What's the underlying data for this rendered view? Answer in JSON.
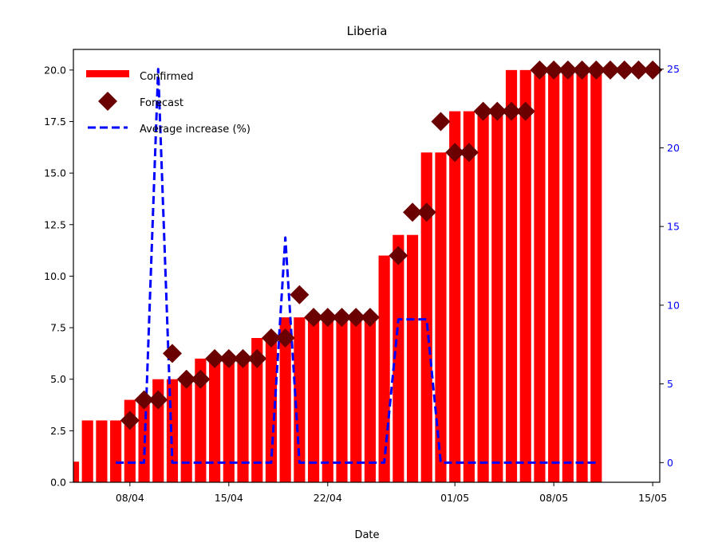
{
  "chart_data": {
    "type": "bar",
    "title": "Liberia",
    "xlabel": "Date",
    "ylabel": "",
    "ylabel_right": "",
    "x_start": "2020-04-04",
    "x_end": "2020-05-15",
    "x_ticks": [
      {
        "date": "2020-04-08",
        "label": "08/04"
      },
      {
        "date": "2020-04-15",
        "label": "15/04"
      },
      {
        "date": "2020-04-22",
        "label": "22/04"
      },
      {
        "date": "2020-05-01",
        "label": "01/05"
      },
      {
        "date": "2020-05-08",
        "label": "08/05"
      },
      {
        "date": "2020-05-15",
        "label": "15/05"
      }
    ],
    "ylim": [
      0,
      21
    ],
    "y_ticks": [
      "0.0",
      "2.5",
      "5.0",
      "7.5",
      "10.0",
      "12.5",
      "15.0",
      "17.5",
      "20.0"
    ],
    "ylim_right": [
      -1.25,
      26.25
    ],
    "y_ticks_right": [
      "0",
      "5",
      "10",
      "15",
      "20",
      "25"
    ],
    "legend": {
      "position": "top-left",
      "entries": [
        "Confirmed",
        "Forecast",
        "Average increase (%)"
      ]
    },
    "colors": {
      "confirmed": "#ff0000",
      "forecast": "#6b0000",
      "average": "#0000ff"
    },
    "series": [
      {
        "name": "Confirmed",
        "type": "bar",
        "x": [
          "2020-04-04",
          "2020-04-05",
          "2020-04-06",
          "2020-04-07",
          "2020-04-08",
          "2020-04-09",
          "2020-04-10",
          "2020-04-11",
          "2020-04-12",
          "2020-04-13",
          "2020-04-14",
          "2020-04-15",
          "2020-04-16",
          "2020-04-17",
          "2020-04-18",
          "2020-04-19",
          "2020-04-20",
          "2020-04-21",
          "2020-04-22",
          "2020-04-23",
          "2020-04-24",
          "2020-04-25",
          "2020-04-26",
          "2020-04-27",
          "2020-04-28",
          "2020-04-29",
          "2020-04-30",
          "2020-05-01",
          "2020-05-02",
          "2020-05-03",
          "2020-05-04",
          "2020-05-05",
          "2020-05-06",
          "2020-05-07",
          "2020-05-08",
          "2020-05-09",
          "2020-05-10",
          "2020-05-11"
        ],
        "values": [
          1,
          3,
          3,
          3,
          4,
          4,
          5,
          5,
          5,
          6,
          6,
          6,
          6,
          7,
          7,
          8,
          8,
          8,
          8,
          8,
          8,
          8,
          11,
          12,
          12,
          16,
          16,
          18,
          18,
          18,
          18,
          20,
          20,
          20,
          20,
          20,
          20,
          20
        ]
      },
      {
        "name": "Forecast",
        "type": "scatter",
        "x": [
          "2020-04-08",
          "2020-04-09",
          "2020-04-10",
          "2020-04-11",
          "2020-04-12",
          "2020-04-13",
          "2020-04-14",
          "2020-04-15",
          "2020-04-16",
          "2020-04-17",
          "2020-04-18",
          "2020-04-19",
          "2020-04-20",
          "2020-04-21",
          "2020-04-22",
          "2020-04-23",
          "2020-04-24",
          "2020-04-25",
          "2020-04-27",
          "2020-04-28",
          "2020-04-29",
          "2020-04-30",
          "2020-05-01",
          "2020-05-02",
          "2020-05-03",
          "2020-05-04",
          "2020-05-05",
          "2020-05-06",
          "2020-05-07",
          "2020-05-08",
          "2020-05-09",
          "2020-05-10",
          "2020-05-11",
          "2020-05-12",
          "2020-05-13",
          "2020-05-14",
          "2020-05-15"
        ],
        "values": [
          3.0,
          4.0,
          4.0,
          6.25,
          5.0,
          5.0,
          6.0,
          6.0,
          6.0,
          6.0,
          7.0,
          7.0,
          9.1,
          8.0,
          8.0,
          8.0,
          8.0,
          8.0,
          11.0,
          13.1,
          13.1,
          17.5,
          16.0,
          16.0,
          18.0,
          18.0,
          18.0,
          18.0,
          20.0,
          20.0,
          20.0,
          20.0,
          20.0,
          20.0,
          20.0,
          20.0,
          20.0
        ]
      },
      {
        "name": "Average increase (%)",
        "type": "line",
        "x": [
          "2020-04-07",
          "2020-04-08",
          "2020-04-09",
          "2020-04-10",
          "2020-04-11",
          "2020-04-12",
          "2020-04-13",
          "2020-04-14",
          "2020-04-15",
          "2020-04-16",
          "2020-04-17",
          "2020-04-18",
          "2020-04-19",
          "2020-04-20",
          "2020-04-21",
          "2020-04-22",
          "2020-04-23",
          "2020-04-24",
          "2020-04-25",
          "2020-04-26",
          "2020-04-27",
          "2020-04-28",
          "2020-04-29",
          "2020-04-30",
          "2020-05-01",
          "2020-05-02",
          "2020-05-03",
          "2020-05-04",
          "2020-05-05",
          "2020-05-06",
          "2020-05-07",
          "2020-05-08",
          "2020-05-09",
          "2020-05-10",
          "2020-05-11"
        ],
        "values": [
          0,
          0,
          0,
          25,
          0,
          0,
          0,
          0,
          0,
          0,
          0,
          0,
          14.3,
          0,
          0,
          0,
          0,
          0,
          0,
          0,
          9.1,
          9.1,
          9.1,
          0,
          0,
          0,
          0,
          0,
          0,
          0,
          0,
          0,
          0,
          0,
          0
        ]
      }
    ]
  }
}
